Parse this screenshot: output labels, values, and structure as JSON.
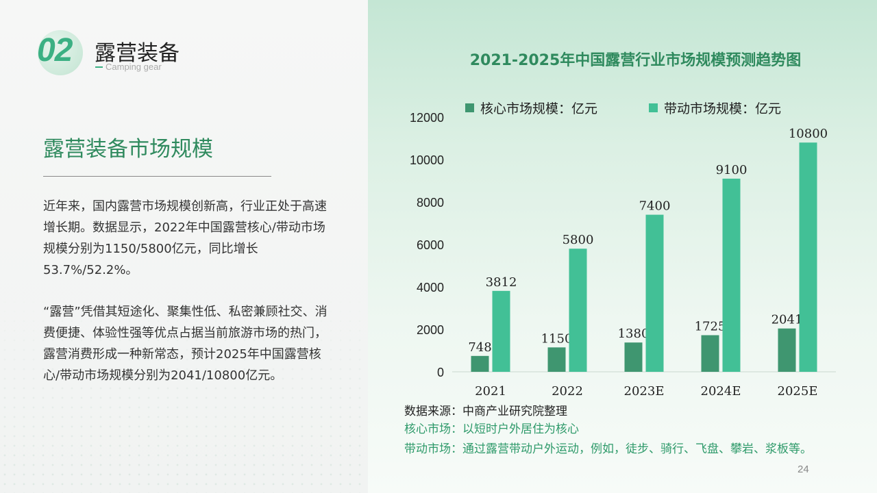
{
  "section": {
    "number": "02",
    "title": "露营装备",
    "subtitle": "Camping gear"
  },
  "left": {
    "heading": "露营装备市场规模",
    "paragraph1": "近年来，国内露营市场规模创新高，行业正处于高速增长期。数据显示，2022年中国露营核心/带动市场规模分别为1150/5800亿元，同比增长53.7%/52.2%。",
    "paragraph2": "“露营”凭借其短途化、聚集性低、私密兼顾社交、消费便捷、体验性强等优点占据当前旅游市场的热门，露营消费形成一种新常态，预计2025年中国露营核心/带动市场规模分别为2041/10800亿元。"
  },
  "chart_data": {
    "type": "bar",
    "title": "2021-2025年中国露营行业市场规模预测趋势图",
    "categories": [
      "2021",
      "2022",
      "2023E",
      "2024E",
      "2025E"
    ],
    "series": [
      {
        "name": "核心市场规模：亿元",
        "values": [
          748,
          1150,
          1380,
          1725,
          2041
        ],
        "color": "#3f9670"
      },
      {
        "name": "带动市场规模：亿元",
        "values": [
          3812,
          5800,
          7400,
          9100,
          10800
        ],
        "color": "#42c096"
      }
    ],
    "ylim": [
      0,
      12000
    ],
    "yticks": [
      0,
      2000,
      4000,
      6000,
      8000,
      10000,
      12000
    ],
    "grid": false,
    "legend": "top"
  },
  "notes": {
    "source": "数据来源：中商产业研究院整理",
    "core": "核心市场：以短时户外居住为核心",
    "driven": "带动市场：通过露营带动户外运动，例如，徒步、骑行、飞盘、攀岩、浆板等。"
  },
  "page_number": "24",
  "colors": {
    "accent": "#3bb083",
    "heading": "#2f8a5e",
    "core_bar": "#3f9670",
    "driven_bar": "#42c096"
  }
}
